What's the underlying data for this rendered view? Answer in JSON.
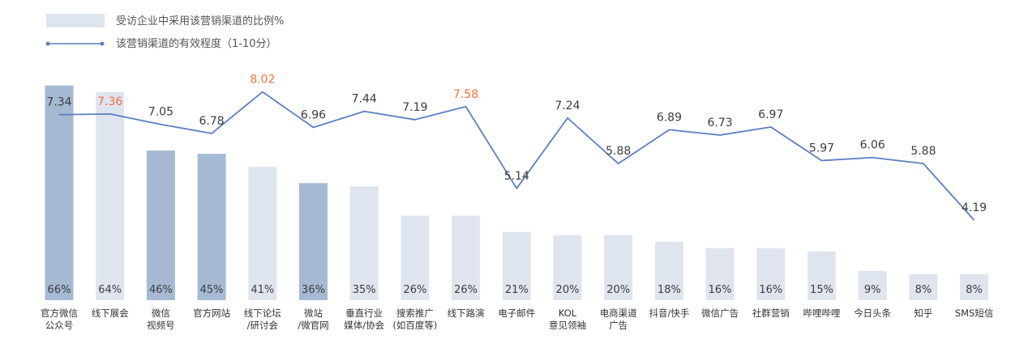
{
  "legend": {
    "bar_label": "受访企业中采用该营销渠道的比例%",
    "line_label": "该营销渠道的有效程度（1-10分）"
  },
  "colors": {
    "bar_dark": "#a6b9d3",
    "bar_light": "#dfe5ef",
    "line": "#5b7fc1",
    "label_normal": "#3d3d3d",
    "label_highlight": "#f26f3e"
  },
  "chart_data": {
    "type": "bar+line",
    "categories": [
      [
        "官方微信",
        "公众号"
      ],
      [
        "线下展会"
      ],
      [
        "微信",
        "视频号"
      ],
      [
        "官方网站"
      ],
      [
        "线下论坛",
        "/研讨会"
      ],
      [
        "微站",
        "/微官网"
      ],
      [
        "垂直行业",
        "媒体/协会"
      ],
      [
        "搜索推广",
        "(如百度等)"
      ],
      [
        "线下路演"
      ],
      [
        "电子邮件"
      ],
      [
        "KOL",
        "意见领袖"
      ],
      [
        "电商渠道",
        "广告"
      ],
      [
        "抖音/快手"
      ],
      [
        "微信广告"
      ],
      [
        "社群营销"
      ],
      [
        "哔哩哔哩"
      ],
      [
        "今日头条"
      ],
      [
        "知乎"
      ],
      [
        "SMS短信"
      ]
    ],
    "series": [
      {
        "name": "受访企业中采用该营销渠道的比例%",
        "type": "bar",
        "values": [
          66,
          64,
          46,
          45,
          41,
          36,
          35,
          26,
          26,
          21,
          20,
          20,
          18,
          16,
          16,
          15,
          9,
          8,
          8
        ],
        "value_labels": [
          "66%",
          "64%",
          "46%",
          "45%",
          "41%",
          "36%",
          "35%",
          "26%",
          "26%",
          "21%",
          "20%",
          "20%",
          "18%",
          "16%",
          "16%",
          "15%",
          "9%",
          "8%",
          "8%"
        ],
        "shade": [
          "dark",
          "light",
          "dark",
          "dark",
          "light",
          "dark",
          "light",
          "light",
          "light",
          "light",
          "light",
          "light",
          "light",
          "light",
          "light",
          "light",
          "light",
          "light",
          "light"
        ]
      },
      {
        "name": "该营销渠道的有效程度（1-10分）",
        "type": "line",
        "values": [
          7.34,
          7.36,
          7.05,
          6.78,
          8.02,
          6.96,
          7.44,
          7.19,
          7.58,
          5.14,
          7.24,
          5.88,
          6.89,
          6.73,
          6.97,
          5.97,
          6.06,
          5.88,
          4.19
        ],
        "value_labels": [
          "7.34",
          "7.36",
          "7.05",
          "6.78",
          "8.02",
          "6.96",
          "7.44",
          "7.19",
          "7.58",
          "5.14",
          "7.24",
          "5.88",
          "6.89",
          "6.73",
          "6.97",
          "5.97",
          "6.06",
          "5.88",
          "4.19"
        ],
        "highlight": [
          false,
          true,
          false,
          false,
          true,
          false,
          false,
          false,
          true,
          false,
          false,
          false,
          false,
          false,
          false,
          false,
          false,
          false,
          false
        ]
      }
    ]
  }
}
